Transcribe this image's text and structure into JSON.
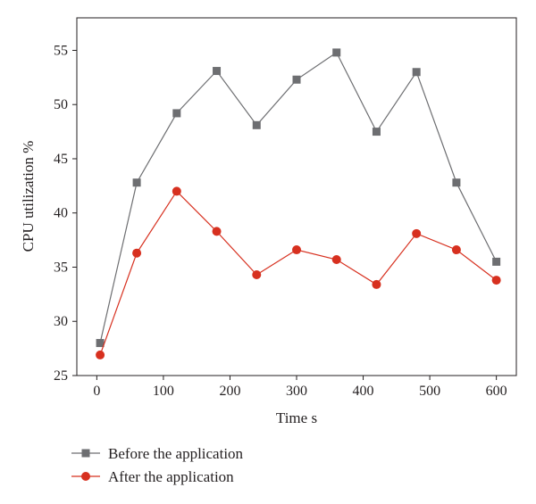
{
  "chart_data": {
    "type": "line",
    "xlabel": "Time s",
    "ylabel": "CPU utilization %",
    "xlim": [
      -30,
      630
    ],
    "ylim": [
      25,
      58
    ],
    "xticks": [
      0,
      100,
      200,
      300,
      400,
      500,
      600
    ],
    "yticks": [
      25,
      30,
      35,
      40,
      45,
      50,
      55
    ],
    "grid": false,
    "legend_position": "bottom-left, below plot",
    "series": [
      {
        "name": "Before the application",
        "color": "#6d6e71",
        "marker": "square",
        "x": [
          5,
          60,
          120,
          180,
          240,
          300,
          360,
          420,
          480,
          540,
          600
        ],
        "y": [
          28.0,
          42.8,
          49.2,
          53.1,
          48.1,
          52.3,
          54.8,
          47.5,
          53.0,
          42.8,
          35.5
        ]
      },
      {
        "name": "After the application",
        "color": "#d7301f",
        "marker": "circle",
        "x": [
          5,
          60,
          120,
          180,
          240,
          300,
          360,
          420,
          480,
          540,
          600
        ],
        "y": [
          26.9,
          36.3,
          42.0,
          38.3,
          34.3,
          36.6,
          35.7,
          33.4,
          38.1,
          36.6,
          33.8
        ]
      }
    ]
  }
}
